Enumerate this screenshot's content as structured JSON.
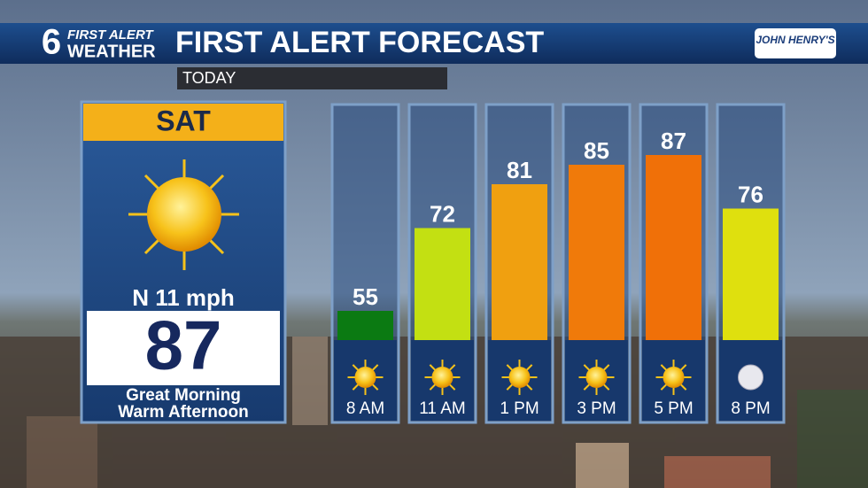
{
  "logo": {
    "number": "6",
    "line1": "FIRST ALERT",
    "line2": "WEATHER"
  },
  "title": "FIRST ALERT FORECAST",
  "sponsor": "JOHN HENRY'S",
  "subtitle": "TODAY",
  "panel": {
    "day": "SAT",
    "wind": "N 11 mph",
    "high": "87",
    "line1": "Great Morning",
    "line2": "Warm Afternoon"
  },
  "chart_data": {
    "type": "bar",
    "categories": [
      "8 AM",
      "11 AM",
      "1 PM",
      "3 PM",
      "5 PM",
      "8 PM"
    ],
    "values": [
      55,
      72,
      81,
      85,
      87,
      76
    ],
    "colors": [
      "#0b7a12",
      "#c3e012",
      "#f0a010",
      "#f07a0a",
      "#f07008",
      "#dfe00e"
    ],
    "icons": [
      "sun",
      "sun",
      "sun",
      "sun",
      "sun",
      "moon"
    ],
    "ylim": [
      49,
      97
    ]
  }
}
